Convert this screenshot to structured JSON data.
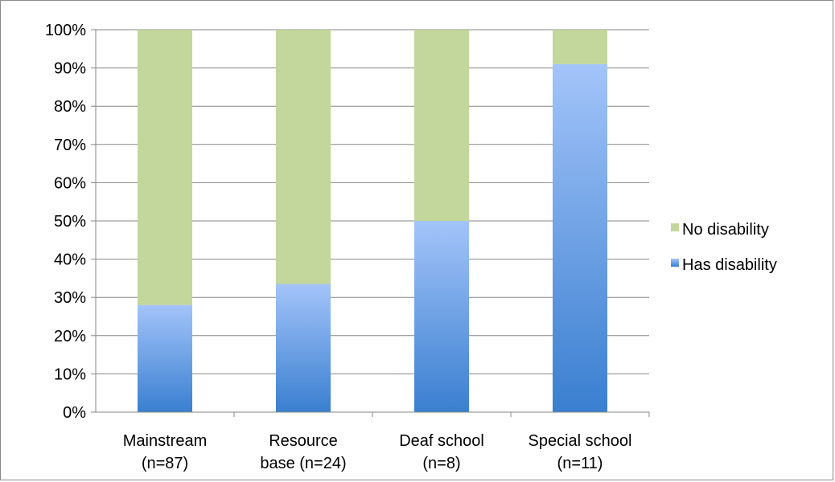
{
  "chart_data": {
    "type": "bar",
    "stacked": true,
    "percent": true,
    "categories": [
      [
        "Mainstream",
        "(n=87)"
      ],
      [
        "Resource",
        "base (n=24)"
      ],
      [
        "Deaf school",
        "(n=8)"
      ],
      [
        "Special school",
        "(n=11)"
      ]
    ],
    "series": [
      {
        "name": "Has disability",
        "values": [
          28,
          33.5,
          50,
          91
        ],
        "color": "#4a86d8"
      },
      {
        "name": "No disability",
        "values": [
          72,
          66.5,
          50,
          9
        ],
        "color": "#c3d69b"
      }
    ],
    "ylim": [
      0,
      100
    ],
    "yticks": [
      "0%",
      "10%",
      "20%",
      "30%",
      "40%",
      "50%",
      "60%",
      "70%",
      "80%",
      "90%",
      "100%"
    ],
    "grid": true,
    "legend_position": "right",
    "legend_order": [
      "No disability",
      "Has disability"
    ]
  }
}
